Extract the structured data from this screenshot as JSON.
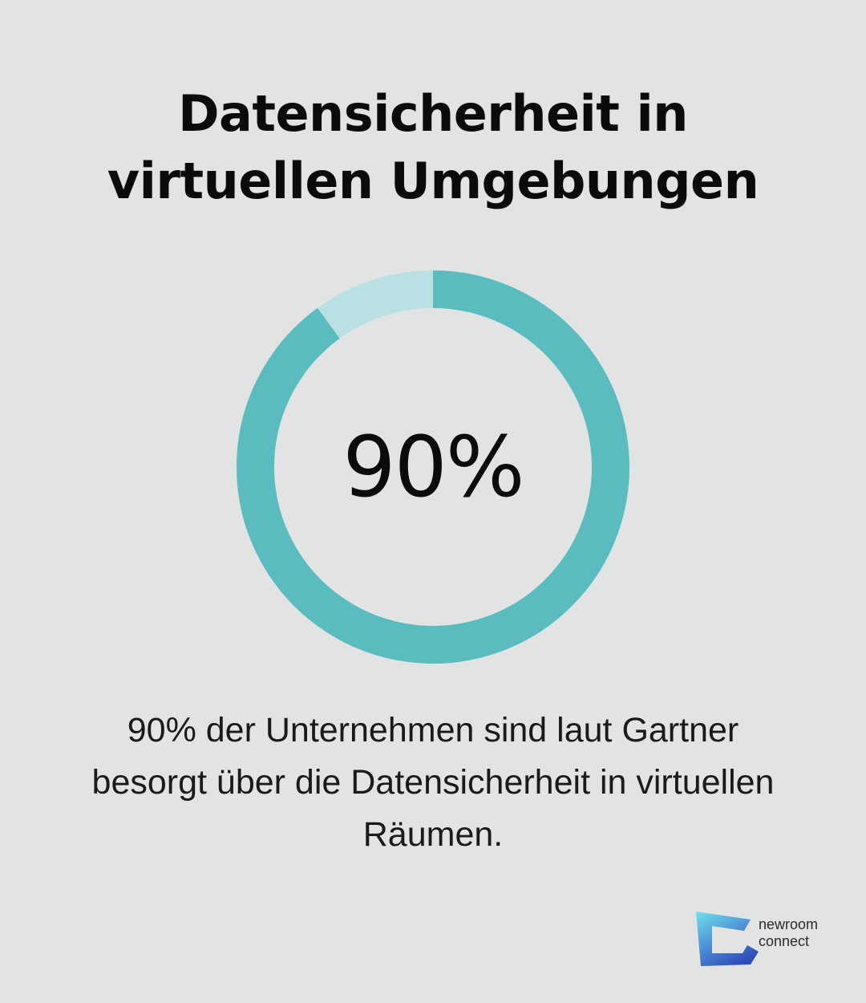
{
  "title": {
    "line1": "Datensicherheit in",
    "line2": "virtuellen Umgebungen"
  },
  "chart_data": {
    "type": "pie",
    "variant": "donut",
    "percent": 90,
    "center_label": "90%",
    "colors": {
      "filled": "#5bbcc0",
      "remaining": "#b9e1e4"
    }
  },
  "description": {
    "line1": "90% der Unternehmen sind laut Gartner",
    "line2": "besorgt über die Datensicherheit in virtuellen",
    "line3": "Räumen."
  },
  "logo": {
    "line1": "newroom",
    "line2": "connect",
    "icon": "newroom-connect-logo-icon"
  }
}
